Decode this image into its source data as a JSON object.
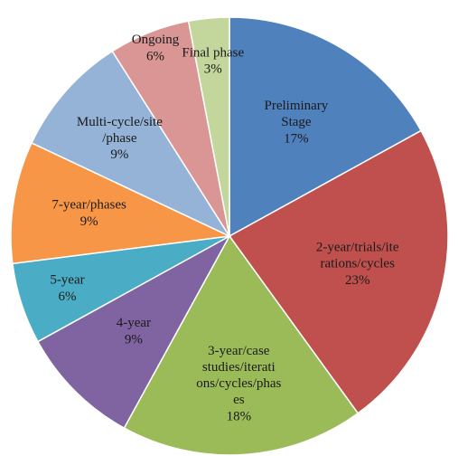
{
  "chart_data": {
    "type": "pie",
    "categories": [
      "Preliminary Stage",
      "2-year/trials/iterations/cycles",
      "3-year/case studies/iterations/cycles/phases",
      "4-year",
      "5-year",
      "7-year/phases",
      "Multi-cycle/site/phase",
      "Ongoing",
      "Final phase"
    ],
    "values": [
      17,
      23,
      18,
      9,
      6,
      9,
      9,
      6,
      3
    ],
    "value_labels": [
      "17%",
      "23%",
      "18%",
      "9%",
      "6%",
      "9%",
      "9%",
      "6%",
      "3%"
    ],
    "colors": [
      "#4f81bd",
      "#c0504d",
      "#9bbb59",
      "#8064a2",
      "#4bacc6",
      "#f79646",
      "#95b3d7",
      "#d99694",
      "#c3d69b"
    ]
  }
}
